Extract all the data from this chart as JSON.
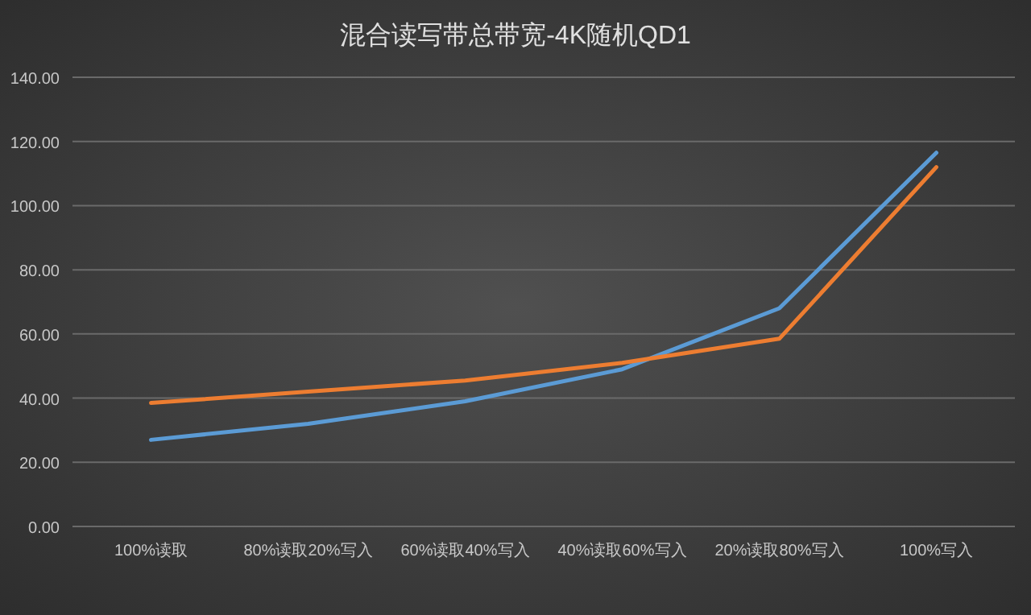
{
  "chart_data": {
    "type": "line",
    "title": "混合读写带总带宽-4K随机QD1",
    "categories": [
      "100%读取",
      "80%读取20%写入",
      "60%读取40%写入",
      "40%读取60%写入",
      "20%读取80%写入",
      "100%写入"
    ],
    "series": [
      {
        "color": "#5b9bd5",
        "values": [
          27,
          32,
          39,
          49,
          68,
          116.5
        ]
      },
      {
        "color": "#ed7d31",
        "values": [
          38.5,
          42,
          45.5,
          51,
          58.5,
          112
        ]
      }
    ],
    "ylim": [
      0,
      140
    ],
    "yticks": [
      {
        "value": 0,
        "label": "0.00"
      },
      {
        "value": 20,
        "label": "20.00"
      },
      {
        "value": 40,
        "label": "40.00"
      },
      {
        "value": 60,
        "label": "60.00"
      },
      {
        "value": 80,
        "label": "80.00"
      },
      {
        "value": 100,
        "label": "100.00"
      },
      {
        "value": 120,
        "label": "120.00"
      },
      {
        "value": 140,
        "label": "140.00"
      }
    ],
    "grid": "y"
  }
}
